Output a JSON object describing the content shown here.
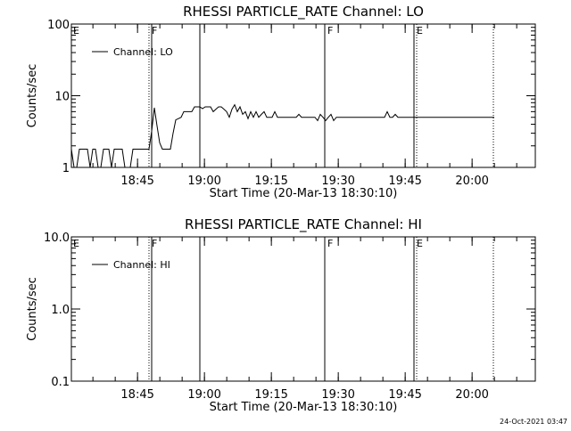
{
  "chart_data": [
    {
      "type": "line",
      "title": "RHESSI PARTICLE_RATE Channel: LO",
      "xlabel": "Start Time (20-Mar-13 18:30:10)",
      "ylabel": "Counts/sec",
      "yscale": "log",
      "ylim": [
        1,
        100
      ],
      "ytick_labels": [
        "1",
        "10",
        "100"
      ],
      "ytick_values": [
        1,
        10,
        100
      ],
      "xlim": [
        "18:30:10",
        "20:14:00"
      ],
      "xtick_labels": [
        "18:45",
        "19:00",
        "19:15",
        "19:30",
        "19:45",
        "20:00"
      ],
      "xtick_values_min": [
        14.83,
        29.83,
        44.83,
        59.83,
        74.83,
        89.83
      ],
      "legend": {
        "position": "top-left",
        "entries": [
          "Channel: LO"
        ]
      },
      "flags": [
        {
          "label": "E",
          "t_min": 0,
          "style": "none"
        },
        {
          "label": "F",
          "t_min": 17.4,
          "style": "dotted+solid"
        },
        {
          "label": "",
          "t_min": 28.8,
          "style": "solid"
        },
        {
          "label": "F",
          "t_min": 56.8,
          "style": "solid"
        },
        {
          "label": "E",
          "t_min": 76.8,
          "style": "solid+dotted"
        },
        {
          "label": "",
          "t_min": 94.6,
          "style": "dotted"
        }
      ],
      "series": [
        {
          "name": "Channel: LO",
          "x_min_since_start": [
            0,
            0.6,
            1.2,
            1.8,
            2.4,
            3,
            3.6,
            4.2,
            4.8,
            5.4,
            6,
            6.6,
            7.2,
            7.8,
            8.4,
            9,
            9.6,
            10.2,
            10.8,
            11.4,
            12,
            12.6,
            13.2,
            13.8,
            14.4,
            15,
            15.6,
            16.2,
            16.8,
            17.4,
            18,
            18.6,
            19.2,
            19.8,
            20.4,
            21,
            21.6,
            22.2,
            22.8,
            23.4,
            24,
            24.6,
            25.2,
            25.8,
            26.4,
            27,
            27.6,
            28.2,
            28.8,
            29.4,
            30,
            30.6,
            31.2,
            31.8,
            32.4,
            33,
            33.6,
            34.2,
            34.8,
            35.4,
            36,
            36.6,
            37.2,
            37.8,
            38.4,
            39,
            39.6,
            40.2,
            40.8,
            41.4,
            42,
            42.6,
            43.2,
            43.8,
            44.4,
            45,
            45.6,
            46.2,
            46.8,
            47.4,
            48,
            48.6,
            49.2,
            49.8,
            50.4,
            51,
            51.6,
            52.2,
            52.8,
            53.4,
            54,
            54.6,
            55.2,
            55.8,
            56.4,
            57,
            57.6,
            58.2,
            58.8,
            59.4,
            60,
            60.6,
            61.2,
            61.8,
            62.4,
            63,
            63.6,
            64.2,
            64.8,
            65.4,
            66,
            66.6,
            67.2,
            67.8,
            68.4,
            69,
            69.6,
            70.2,
            70.8,
            71.4,
            72,
            72.6,
            73.2,
            73.8,
            74.4,
            75,
            75.6,
            76.2,
            76.8,
            77.4,
            78,
            78.6,
            79.2,
            79.8,
            80.4,
            81,
            81.6,
            82.2,
            82.8,
            83.4,
            84,
            84.6,
            85.2,
            85.8,
            86.4,
            87,
            87.6,
            88.2,
            88.8,
            89.4,
            90,
            90.6,
            91.2,
            91.8,
            92.4,
            93,
            93.6,
            94.2,
            94.8
          ],
          "values": [
            1.8,
            1,
            1,
            1.8,
            1.8,
            1.8,
            1.8,
            1,
            1.8,
            1.8,
            1,
            1,
            1.8,
            1.8,
            1.8,
            1,
            1.8,
            1.8,
            1.8,
            1.8,
            1,
            1,
            1,
            1.8,
            1.8,
            1.8,
            1.8,
            1.8,
            1.8,
            1.8,
            3.2,
            6.8,
            3.8,
            2.2,
            1.8,
            1.8,
            1.8,
            1.8,
            3,
            4.6,
            4.8,
            5,
            6,
            6,
            6,
            6,
            7,
            7,
            7,
            6.6,
            7,
            7,
            7,
            6,
            6.5,
            7,
            7,
            6.5,
            6,
            5,
            6.5,
            7.5,
            6,
            7,
            5.5,
            6,
            4.8,
            6,
            5,
            6,
            5,
            5.5,
            6,
            5,
            5,
            5,
            6,
            5,
            5,
            5,
            5,
            5,
            5,
            5,
            5,
            5.5,
            5,
            5,
            5,
            5,
            5,
            5,
            4.5,
            5.5,
            5,
            4.5,
            5,
            5.5,
            4.5,
            5,
            5,
            5,
            5,
            5,
            5,
            5,
            5,
            5,
            5,
            5,
            5,
            5,
            5,
            5,
            5,
            5,
            5,
            5,
            6,
            5,
            5,
            5.5,
            5,
            5,
            5,
            5,
            5,
            5,
            5,
            5,
            5,
            5,
            5,
            5,
            5,
            5,
            5,
            5,
            5,
            5,
            5,
            5,
            5,
            5,
            5,
            5,
            5,
            5,
            5,
            5,
            5,
            5,
            5,
            5,
            5,
            5,
            5,
            5,
            5,
            5,
            5
          ]
        }
      ]
    },
    {
      "type": "line",
      "title": "RHESSI PARTICLE_RATE Channel: HI",
      "xlabel": "Start Time (20-Mar-13 18:30:10)",
      "ylabel": "Counts/sec",
      "yscale": "log",
      "ylim": [
        0.1,
        10.0
      ],
      "ytick_labels": [
        "0.1",
        "1.0",
        "10.0"
      ],
      "ytick_values": [
        0.1,
        1.0,
        10.0
      ],
      "xlim": [
        "18:30:10",
        "20:14:00"
      ],
      "xtick_labels": [
        "18:45",
        "19:00",
        "19:15",
        "19:30",
        "19:45",
        "20:00"
      ],
      "xtick_values_min": [
        14.83,
        29.83,
        44.83,
        59.83,
        74.83,
        89.83
      ],
      "legend": {
        "position": "top-left",
        "entries": [
          "Channel: HI"
        ]
      },
      "flags": [
        {
          "label": "E",
          "t_min": 0,
          "style": "none"
        },
        {
          "label": "F",
          "t_min": 17.4,
          "style": "dotted+solid"
        },
        {
          "label": "",
          "t_min": 28.8,
          "style": "solid"
        },
        {
          "label": "F",
          "t_min": 56.8,
          "style": "solid"
        },
        {
          "label": "E",
          "t_min": 76.8,
          "style": "solid+dotted"
        },
        {
          "label": "",
          "t_min": 94.6,
          "style": "dotted"
        }
      ],
      "series": [
        {
          "name": "Channel: HI",
          "x_min_since_start": [],
          "values": []
        }
      ]
    }
  ],
  "footer": {
    "timestamp": "24-Oct-2021 03:47"
  }
}
